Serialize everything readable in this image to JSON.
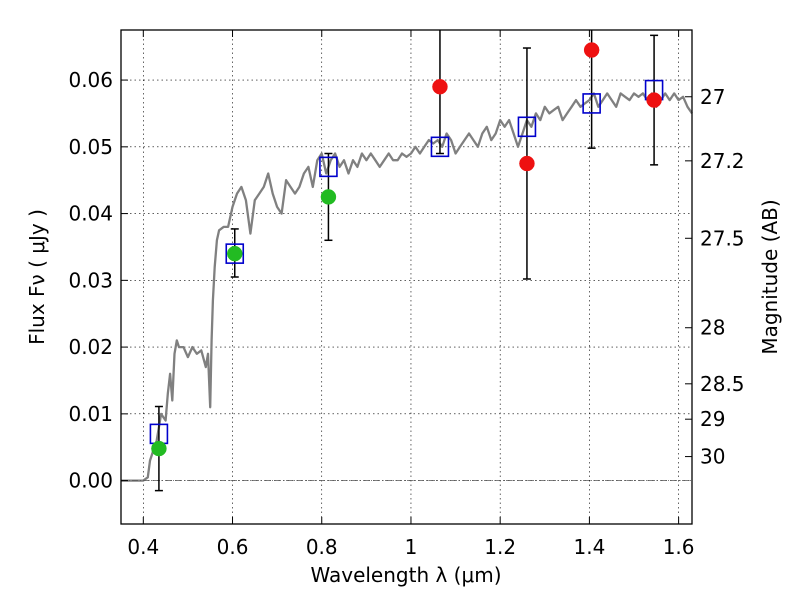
{
  "chart_data": {
    "type": "scatter",
    "title": "",
    "xlabel": "Wavelength  λ (μm)",
    "ylabel": "Flux  Fν  ( μJy )",
    "y2label": "Magnitude (AB)",
    "xlim": [
      0.35,
      1.63
    ],
    "ylim": [
      -0.0065,
      0.0675
    ],
    "grid": true,
    "x_ticks": [
      0.4,
      0.6,
      0.8,
      1.0,
      1.2,
      1.4,
      1.6
    ],
    "x_tick_labels": [
      "0.4",
      "0.6",
      "0.8",
      "1",
      "1.2",
      "1.4",
      "1.6"
    ],
    "y_ticks": [
      0.0,
      0.01,
      0.02,
      0.03,
      0.04,
      0.05,
      0.06
    ],
    "y_tick_labels": [
      "0.00",
      "0.01",
      "0.02",
      "0.03",
      "0.04",
      "0.05",
      "0.06"
    ],
    "y2_ticks": [
      {
        "label": "27",
        "flux": 0.0575
      },
      {
        "label": "27.2",
        "flux": 0.0479
      },
      {
        "label": "27.5",
        "flux": 0.0363
      },
      {
        "label": "28",
        "flux": 0.0229
      },
      {
        "label": "28.5",
        "flux": 0.0145
      },
      {
        "label": "29",
        "flux": 0.0092
      },
      {
        "label": "30",
        "flux": 0.0036
      }
    ],
    "series": [
      {
        "kind": "line",
        "color": "#808080",
        "x": [
          0.35,
          0.4,
          0.41,
          0.415,
          0.42,
          0.43,
          0.44,
          0.45,
          0.455,
          0.46,
          0.465,
          0.47,
          0.475,
          0.48,
          0.49,
          0.5,
          0.51,
          0.52,
          0.53,
          0.54,
          0.545,
          0.55,
          0.553,
          0.556,
          0.56,
          0.565,
          0.57,
          0.58,
          0.59,
          0.6,
          0.61,
          0.62,
          0.63,
          0.64,
          0.65,
          0.66,
          0.67,
          0.68,
          0.69,
          0.7,
          0.71,
          0.72,
          0.73,
          0.74,
          0.75,
          0.76,
          0.77,
          0.78,
          0.79,
          0.8,
          0.81,
          0.82,
          0.83,
          0.84,
          0.85,
          0.86,
          0.87,
          0.88,
          0.89,
          0.9,
          0.91,
          0.92,
          0.93,
          0.94,
          0.95,
          0.96,
          0.97,
          0.98,
          0.99,
          1.0,
          1.01,
          1.02,
          1.03,
          1.04,
          1.05,
          1.06,
          1.07,
          1.08,
          1.09,
          1.1,
          1.11,
          1.12,
          1.13,
          1.14,
          1.15,
          1.16,
          1.17,
          1.18,
          1.19,
          1.2,
          1.21,
          1.22,
          1.23,
          1.24,
          1.25,
          1.26,
          1.27,
          1.28,
          1.29,
          1.3,
          1.31,
          1.32,
          1.33,
          1.34,
          1.35,
          1.36,
          1.37,
          1.38,
          1.39,
          1.4,
          1.41,
          1.42,
          1.43,
          1.44,
          1.45,
          1.46,
          1.47,
          1.48,
          1.49,
          1.5,
          1.51,
          1.52,
          1.53,
          1.54,
          1.55,
          1.56,
          1.57,
          1.58,
          1.59,
          1.6,
          1.61,
          1.62,
          1.63
        ],
        "y": [
          0.0,
          0.0,
          0.0005,
          0.003,
          0.004,
          0.006,
          0.01,
          0.009,
          0.013,
          0.016,
          0.012,
          0.019,
          0.021,
          0.02,
          0.02,
          0.0185,
          0.02,
          0.019,
          0.0195,
          0.017,
          0.019,
          0.011,
          0.021,
          0.027,
          0.032,
          0.036,
          0.0375,
          0.038,
          0.038,
          0.041,
          0.043,
          0.044,
          0.042,
          0.037,
          0.042,
          0.043,
          0.044,
          0.046,
          0.043,
          0.041,
          0.04,
          0.045,
          0.044,
          0.043,
          0.044,
          0.046,
          0.047,
          0.044,
          0.048,
          0.049,
          0.046,
          0.048,
          0.049,
          0.047,
          0.048,
          0.046,
          0.048,
          0.047,
          0.049,
          0.048,
          0.049,
          0.048,
          0.047,
          0.048,
          0.049,
          0.048,
          0.048,
          0.049,
          0.0485,
          0.049,
          0.05,
          0.049,
          0.05,
          0.051,
          0.0505,
          0.051,
          0.05,
          0.052,
          0.051,
          0.049,
          0.05,
          0.051,
          0.052,
          0.051,
          0.05,
          0.052,
          0.053,
          0.051,
          0.052,
          0.054,
          0.053,
          0.054,
          0.052,
          0.05,
          0.052,
          0.054,
          0.053,
          0.055,
          0.054,
          0.056,
          0.055,
          0.0555,
          0.056,
          0.054,
          0.055,
          0.056,
          0.057,
          0.056,
          0.0565,
          0.057,
          0.058,
          0.056,
          0.057,
          0.058,
          0.057,
          0.056,
          0.058,
          0.0575,
          0.057,
          0.058,
          0.0575,
          0.058,
          0.057,
          0.058,
          0.056,
          0.057,
          0.058,
          0.057,
          0.058,
          0.057,
          0.0575,
          0.056,
          0.055
        ]
      },
      {
        "kind": "open-square",
        "color": "#0000cc",
        "x": [
          0.435,
          0.605,
          0.815,
          1.065,
          1.26,
          1.405,
          1.545
        ],
        "y": [
          0.007,
          0.034,
          0.047,
          0.05,
          0.053,
          0.0565,
          0.0585
        ]
      },
      {
        "kind": "dot-errorbar",
        "color": "#22bb22",
        "x": [
          0.435,
          0.605,
          0.815
        ],
        "y": [
          0.0048,
          0.034,
          0.0425
        ],
        "yerr_low": [
          0.0063,
          0.0035,
          0.0065
        ],
        "yerr_high": [
          0.0063,
          0.0037,
          0.0065
        ]
      },
      {
        "kind": "dot-errorbar",
        "color": "#ee1111",
        "x": [
          1.065,
          1.26,
          1.405,
          1.545
        ],
        "y": [
          0.059,
          0.0475,
          0.0645,
          0.057
        ],
        "yerr_low": [
          0.01,
          0.0173,
          0.0147,
          0.0097
        ],
        "yerr_high": [
          0.01,
          0.0173,
          0.0147,
          0.0097
        ]
      }
    ]
  }
}
